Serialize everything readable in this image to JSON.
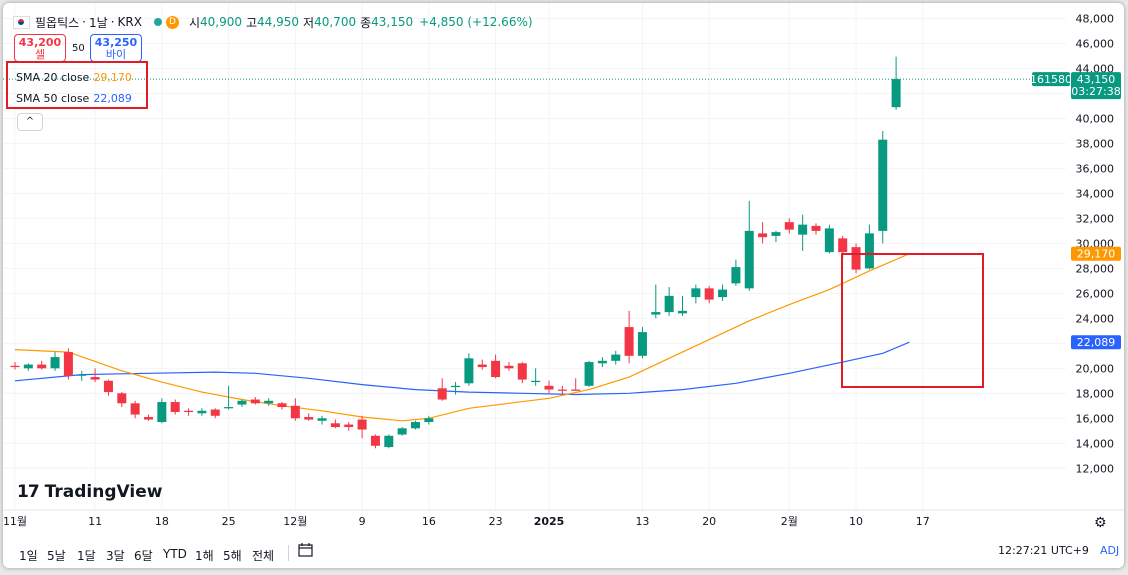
{
  "header": {
    "symbol": "필옵틱스",
    "separator": "·",
    "interval": "1날",
    "exchange": "KRX",
    "d_badge": "D",
    "open_label": "시",
    "open": "40,900",
    "high_label": "고",
    "high": "44,950",
    "low_label": "저",
    "low": "40,700",
    "close_label": "종",
    "close": "43,150",
    "change": "+4,850 (+12.66%)"
  },
  "trade": {
    "sell_price": "43,200",
    "sell_label": "셀",
    "spread": "50",
    "buy_price": "43,250",
    "buy_label": "바이"
  },
  "legend": {
    "sma20_label": "SMA 20 close",
    "sma20_value": "29,170",
    "sma50_label": "SMA 50 close",
    "sma50_value": "22,089",
    "collapse_glyph": "^"
  },
  "price_badges": {
    "volume": "161580",
    "last_price": "43,150",
    "countdown": "03:27:38",
    "sma20": "29,170",
    "sma50": "22,089"
  },
  "logo": {
    "text": "TradingView",
    "mark": "17"
  },
  "bottom": {
    "ranges": [
      "1일",
      "5날",
      "1달",
      "3달",
      "6달",
      "YTD",
      "1해",
      "5해",
      "전체"
    ],
    "time": "12:27:21 UTC+9",
    "adj": "ADJ"
  },
  "colors": {
    "up": "#089981",
    "down": "#f23645",
    "sma20": "#ff9800",
    "sma50": "#2962ff",
    "grid": "#f0f3fa",
    "highlight_box": "#e11c24"
  },
  "chart_data": {
    "type": "candlestick",
    "ylim": [
      10500,
      48200
    ],
    "y_ticks": [
      12000,
      14000,
      16000,
      18000,
      20000,
      22000,
      24000,
      26000,
      28000,
      30000,
      32000,
      34000,
      36000,
      38000,
      40000,
      42000,
      44000,
      46000,
      48000
    ],
    "y_tick_labels": [
      "12,000",
      "14,000",
      "16,000",
      "18,000",
      "20,000",
      "22,000",
      "24,000",
      "26,000",
      "28,000",
      "30,000",
      "32,000",
      "34,000",
      "36,000",
      "38,000",
      "40,000",
      "42,000",
      "44,000",
      "46,000",
      "48,000"
    ],
    "x_labels": [
      {
        "label": "11월",
        "index": 0
      },
      {
        "label": "11",
        "index": 6
      },
      {
        "label": "18",
        "index": 11
      },
      {
        "label": "25",
        "index": 16
      },
      {
        "label": "12월",
        "index": 21
      },
      {
        "label": "9",
        "index": 26
      },
      {
        "label": "16",
        "index": 31
      },
      {
        "label": "23",
        "index": 36
      },
      {
        "label": "2025",
        "index": 40
      },
      {
        "label": "13",
        "index": 47
      },
      {
        "label": "20",
        "index": 52
      },
      {
        "label": "2월",
        "index": 58
      },
      {
        "label": "10",
        "index": 63
      },
      {
        "label": "17",
        "index": 68
      }
    ],
    "candles": [
      {
        "o": 20200,
        "h": 20500,
        "l": 19900,
        "c": 20100
      },
      {
        "o": 20000,
        "h": 20400,
        "l": 19800,
        "c": 20300
      },
      {
        "o": 20300,
        "h": 20600,
        "l": 19900,
        "c": 20000
      },
      {
        "o": 20000,
        "h": 21300,
        "l": 19800,
        "c": 20900
      },
      {
        "o": 21300,
        "h": 21600,
        "l": 19100,
        "c": 19400
      },
      {
        "o": 19400,
        "h": 19800,
        "l": 19000,
        "c": 19500
      },
      {
        "o": 19300,
        "h": 20000,
        "l": 18900,
        "c": 19100
      },
      {
        "o": 19000,
        "h": 19100,
        "l": 17800,
        "c": 18100
      },
      {
        "o": 18000,
        "h": 18100,
        "l": 16900,
        "c": 17200
      },
      {
        "o": 17200,
        "h": 17400,
        "l": 16000,
        "c": 16300
      },
      {
        "o": 16100,
        "h": 16300,
        "l": 15800,
        "c": 15900
      },
      {
        "o": 15700,
        "h": 17600,
        "l": 15600,
        "c": 17300
      },
      {
        "o": 17300,
        "h": 17500,
        "l": 16300,
        "c": 16500
      },
      {
        "o": 16600,
        "h": 16800,
        "l": 16200,
        "c": 16500
      },
      {
        "o": 16400,
        "h": 16800,
        "l": 16200,
        "c": 16600
      },
      {
        "o": 16700,
        "h": 16800,
        "l": 16000,
        "c": 16200
      },
      {
        "o": 16800,
        "h": 18600,
        "l": 16700,
        "c": 16900
      },
      {
        "o": 17100,
        "h": 17500,
        "l": 16900,
        "c": 17400
      },
      {
        "o": 17500,
        "h": 17700,
        "l": 17100,
        "c": 17200
      },
      {
        "o": 17200,
        "h": 17600,
        "l": 17000,
        "c": 17400
      },
      {
        "o": 17200,
        "h": 17300,
        "l": 16700,
        "c": 16900
      },
      {
        "o": 17000,
        "h": 17600,
        "l": 15800,
        "c": 16000
      },
      {
        "o": 16100,
        "h": 16400,
        "l": 15800,
        "c": 15900
      },
      {
        "o": 15800,
        "h": 16200,
        "l": 15500,
        "c": 16000
      },
      {
        "o": 15600,
        "h": 15900,
        "l": 15200,
        "c": 15300
      },
      {
        "o": 15500,
        "h": 15700,
        "l": 15000,
        "c": 15300
      },
      {
        "o": 15900,
        "h": 16200,
        "l": 14400,
        "c": 15100
      },
      {
        "o": 14600,
        "h": 14700,
        "l": 13600,
        "c": 13800
      },
      {
        "o": 13700,
        "h": 14700,
        "l": 13600,
        "c": 14600
      },
      {
        "o": 14700,
        "h": 15300,
        "l": 14600,
        "c": 15200
      },
      {
        "o": 15200,
        "h": 15800,
        "l": 15100,
        "c": 15700
      },
      {
        "o": 15700,
        "h": 16200,
        "l": 15500,
        "c": 16000
      },
      {
        "o": 18400,
        "h": 19200,
        "l": 17400,
        "c": 17500
      },
      {
        "o": 18500,
        "h": 18900,
        "l": 17900,
        "c": 18600
      },
      {
        "o": 18800,
        "h": 21200,
        "l": 18600,
        "c": 20800
      },
      {
        "o": 20300,
        "h": 20700,
        "l": 19900,
        "c": 20100
      },
      {
        "o": 20600,
        "h": 21100,
        "l": 19200,
        "c": 19300
      },
      {
        "o": 20200,
        "h": 20500,
        "l": 19800,
        "c": 20000
      },
      {
        "o": 20400,
        "h": 20500,
        "l": 18800,
        "c": 19100
      },
      {
        "o": 18900,
        "h": 20000,
        "l": 18600,
        "c": 19000
      },
      {
        "o": 18600,
        "h": 19000,
        "l": 18000,
        "c": 18300
      },
      {
        "o": 18300,
        "h": 18600,
        "l": 17900,
        "c": 18200
      },
      {
        "o": 18300,
        "h": 19200,
        "l": 18200,
        "c": 18200
      },
      {
        "o": 18600,
        "h": 20600,
        "l": 18500,
        "c": 20500
      },
      {
        "o": 20400,
        "h": 20900,
        "l": 20100,
        "c": 20600
      },
      {
        "o": 20600,
        "h": 21400,
        "l": 20300,
        "c": 21100
      },
      {
        "o": 23300,
        "h": 24600,
        "l": 20400,
        "c": 21000
      },
      {
        "o": 21000,
        "h": 23300,
        "l": 20800,
        "c": 22900
      },
      {
        "o": 24300,
        "h": 26700,
        "l": 24000,
        "c": 24500
      },
      {
        "o": 24500,
        "h": 26500,
        "l": 24200,
        "c": 25800
      },
      {
        "o": 24400,
        "h": 25800,
        "l": 24200,
        "c": 24600
      },
      {
        "o": 25700,
        "h": 26700,
        "l": 25200,
        "c": 26400
      },
      {
        "o": 26400,
        "h": 26600,
        "l": 25200,
        "c": 25500
      },
      {
        "o": 25700,
        "h": 26700,
        "l": 25400,
        "c": 26300
      },
      {
        "o": 26800,
        "h": 28700,
        "l": 26600,
        "c": 28100
      },
      {
        "o": 26400,
        "h": 33400,
        "l": 26200,
        "c": 31000
      },
      {
        "o": 30800,
        "h": 31700,
        "l": 30000,
        "c": 30500
      },
      {
        "o": 30600,
        "h": 31000,
        "l": 30100,
        "c": 30900
      },
      {
        "o": 31700,
        "h": 32000,
        "l": 30800,
        "c": 31100
      },
      {
        "o": 30700,
        "h": 32300,
        "l": 29400,
        "c": 31500
      },
      {
        "o": 31400,
        "h": 31600,
        "l": 30700,
        "c": 31000
      },
      {
        "o": 29300,
        "h": 31500,
        "l": 29200,
        "c": 31200
      },
      {
        "o": 30400,
        "h": 30600,
        "l": 28800,
        "c": 29300
      },
      {
        "o": 29700,
        "h": 30000,
        "l": 27600,
        "c": 27900
      },
      {
        "o": 28000,
        "h": 31500,
        "l": 27900,
        "c": 30800
      },
      {
        "o": 31000,
        "h": 39000,
        "l": 30000,
        "c": 38300
      },
      {
        "o": 40900,
        "h": 44950,
        "l": 40700,
        "c": 43150
      }
    ],
    "sma20": [
      [
        0,
        21500
      ],
      [
        4,
        21300
      ],
      [
        8,
        19800
      ],
      [
        11,
        18900
      ],
      [
        14,
        18100
      ],
      [
        17,
        17500
      ],
      [
        20,
        17000
      ],
      [
        23,
        16600
      ],
      [
        26,
        16100
      ],
      [
        29,
        15800
      ],
      [
        31,
        16000
      ],
      [
        34,
        16800
      ],
      [
        37,
        17200
      ],
      [
        40,
        17600
      ],
      [
        43,
        18300
      ],
      [
        46,
        19300
      ],
      [
        49,
        20800
      ],
      [
        52,
        22300
      ],
      [
        55,
        23800
      ],
      [
        58,
        25100
      ],
      [
        61,
        26300
      ],
      [
        64,
        27800
      ],
      [
        67,
        29170
      ]
    ],
    "sma50": [
      [
        0,
        19000
      ],
      [
        5,
        19500
      ],
      [
        10,
        19600
      ],
      [
        15,
        19700
      ],
      [
        18,
        19600
      ],
      [
        22,
        19200
      ],
      [
        26,
        18700
      ],
      [
        30,
        18300
      ],
      [
        34,
        18100
      ],
      [
        38,
        18000
      ],
      [
        42,
        17900
      ],
      [
        46,
        18000
      ],
      [
        50,
        18300
      ],
      [
        54,
        18800
      ],
      [
        58,
        19600
      ],
      [
        62,
        20500
      ],
      [
        65,
        21200
      ],
      [
        67,
        22089
      ]
    ]
  }
}
